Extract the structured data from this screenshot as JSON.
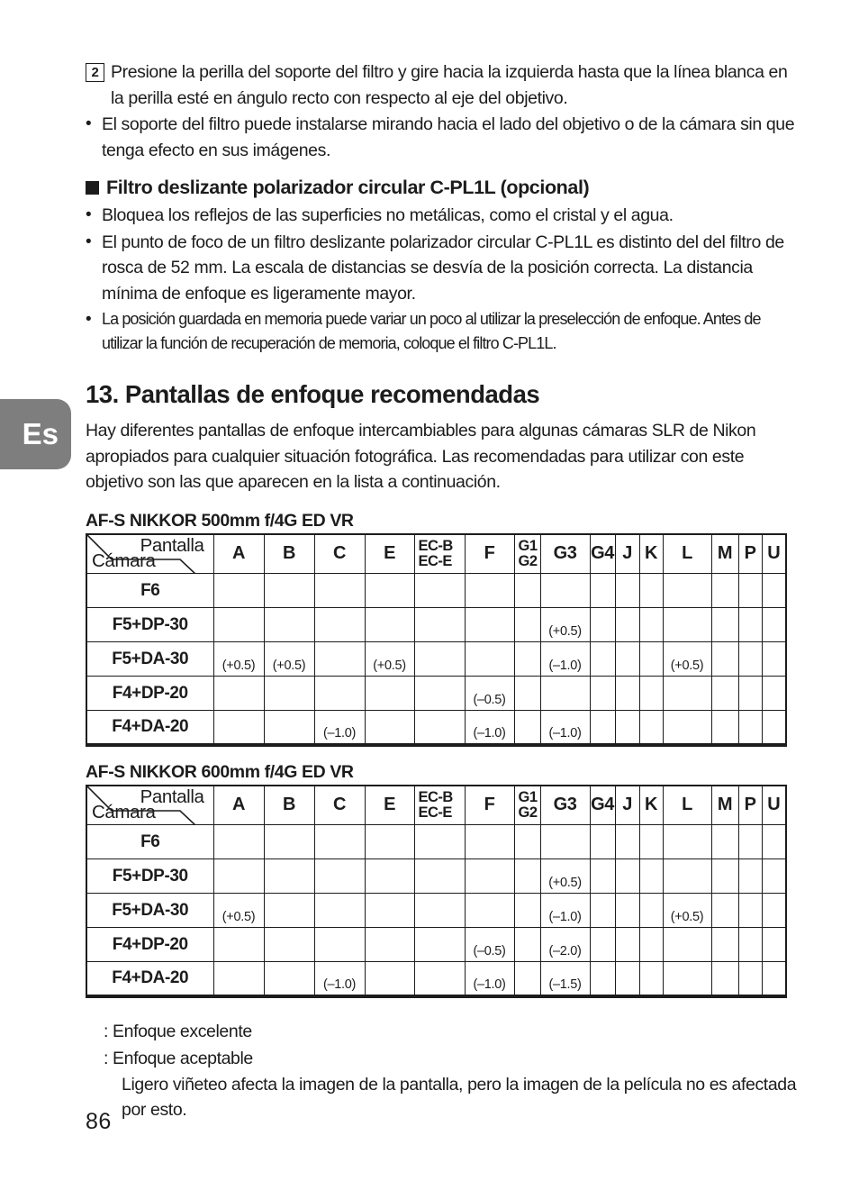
{
  "page": {
    "language_tab": "Es",
    "page_number": "86",
    "tab_color": "#7e7e7e",
    "text_color": "#1c1c1c"
  },
  "top_section": {
    "step_number": "2",
    "step_text": "Presione la perilla del soporte del filtro y gire hacia la izquierda hasta que la línea blanca en la perilla esté en ángulo recto con respecto al eje del objetivo.",
    "bullet": "El soporte del filtro puede instalarse mirando hacia el lado del objetivo o de la cámara sin que tenga efecto en sus imágenes."
  },
  "filter_section": {
    "title": "Filtro deslizante polarizador circular C-PL1L (opcional)",
    "bullets": [
      "Bloquea los reflejos de las superficies no metálicas, como el cristal y el agua.",
      "El punto de foco de un filtro deslizante polarizador circular C-PL1L es distinto del del filtro de rosca de 52 mm. La escala de distancias se desvía de la posición correcta. La distancia mínima de enfoque es ligeramente mayor.",
      "La posición guardada en memoria puede variar un poco al utilizar la preselección de enfoque. Antes de utilizar la función de recuperación de memoria, coloque el filtro C-PL1L."
    ]
  },
  "screens_section": {
    "title": "13. Pantallas de enfoque recomendadas",
    "intro": "Hay diferentes pantallas de enfoque intercambiables para algunas cámaras SLR de Nikon apropiados para cualquier situación fotográfica. Las recomendadas para utilizar con este objetivo son las que aparecen en la lista a continuación.",
    "corner": {
      "top": "Pantalla",
      "bottom": "Cámara"
    },
    "columns": [
      "A",
      "B",
      "C",
      "E",
      [
        "EC-B",
        "EC-E"
      ],
      "F",
      [
        "G1",
        "G2"
      ],
      "G3",
      "G4",
      "J",
      "K",
      "L",
      "M",
      "P",
      "U"
    ],
    "tables": [
      {
        "title": "AF-S NIKKOR 500mm f/4G ED VR",
        "rows": [
          {
            "label": "F6",
            "cells": [
              "",
              "",
              "",
              "",
              "",
              "",
              "",
              "",
              "",
              "",
              "",
              "",
              "",
              "",
              ""
            ]
          },
          {
            "label": "F5+DP-30",
            "cells": [
              "",
              "",
              "",
              "",
              "",
              "",
              "",
              "(+0.5)",
              "",
              "",
              "",
              "",
              "",
              "",
              ""
            ]
          },
          {
            "label": "F5+DA-30",
            "cells": [
              "(+0.5)",
              "(+0.5)",
              "",
              "(+0.5)",
              "",
              "",
              "",
              "(–1.0)",
              "",
              "",
              "",
              "(+0.5)",
              "",
              "",
              ""
            ]
          },
          {
            "label": "F4+DP-20",
            "cells": [
              "",
              "",
              "",
              "",
              "",
              "(–0.5)",
              "",
              "",
              "",
              "",
              "",
              "",
              "",
              "",
              ""
            ]
          },
          {
            "label": "F4+DA-20",
            "cells": [
              "",
              "",
              "(–1.0)",
              "",
              "",
              "(–1.0)",
              "",
              "(–1.0)",
              "",
              "",
              "",
              "",
              "",
              "",
              ""
            ]
          }
        ]
      },
      {
        "title": "AF-S NIKKOR 600mm f/4G ED VR",
        "rows": [
          {
            "label": "F6",
            "cells": [
              "",
              "",
              "",
              "",
              "",
              "",
              "",
              "",
              "",
              "",
              "",
              "",
              "",
              "",
              ""
            ]
          },
          {
            "label": "F5+DP-30",
            "cells": [
              "",
              "",
              "",
              "",
              "",
              "",
              "",
              "(+0.5)",
              "",
              "",
              "",
              "",
              "",
              "",
              ""
            ]
          },
          {
            "label": "F5+DA-30",
            "cells": [
              "(+0.5)",
              "",
              "",
              "",
              "",
              "",
              "",
              "(–1.0)",
              "",
              "",
              "",
              "(+0.5)",
              "",
              "",
              ""
            ]
          },
          {
            "label": "F4+DP-20",
            "cells": [
              "",
              "",
              "",
              "",
              "",
              "(–0.5)",
              "",
              "(–2.0)",
              "",
              "",
              "",
              "",
              "",
              "",
              ""
            ]
          },
          {
            "label": "F4+DA-20",
            "cells": [
              "",
              "",
              "(–1.0)",
              "",
              "",
              "(–1.0)",
              "",
              "(–1.5)",
              "",
              "",
              "",
              "",
              "",
              "",
              ""
            ]
          }
        ]
      }
    ],
    "legend": {
      "excellent": ": Enfoque excelente",
      "acceptable": ": Enfoque aceptable",
      "note": "Ligero viñeteo afecta la imagen de la pantalla, pero la imagen de la película no es afectada por esto."
    }
  }
}
